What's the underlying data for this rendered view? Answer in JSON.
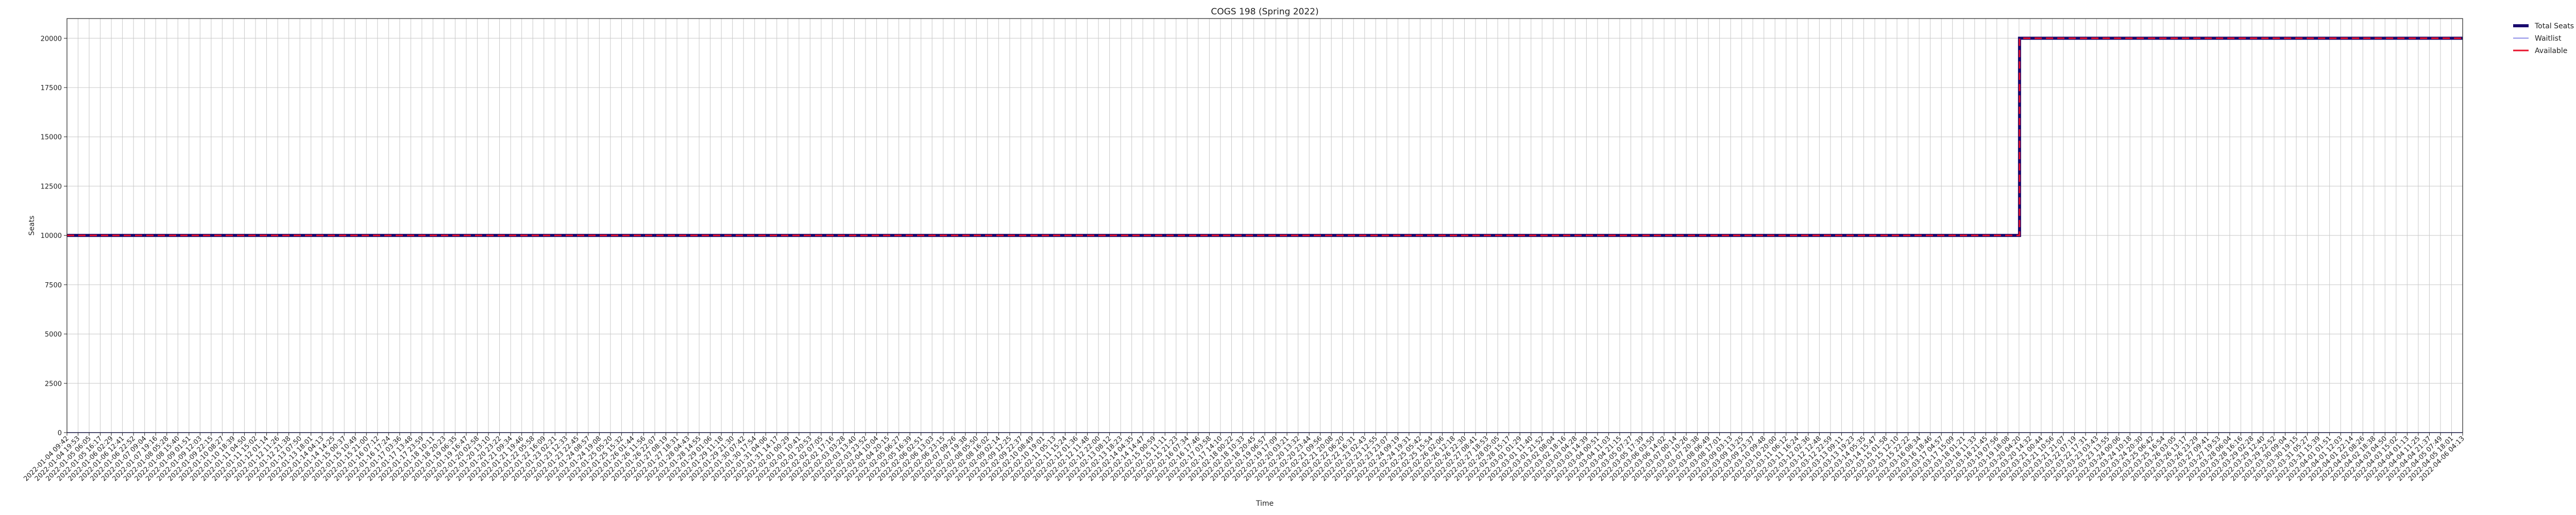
{
  "chart_data": {
    "type": "line",
    "title": "COGS 198 (Spring 2022)",
    "xlabel": "Time",
    "ylabel": "Seats",
    "ylim": [
      0,
      21000
    ],
    "yticks": [
      0,
      2500,
      5000,
      7500,
      10000,
      12500,
      15000,
      17500,
      20000
    ],
    "ytick_labels": [
      "0",
      "2500",
      "5000",
      "7500",
      "10000",
      "12500",
      "15000",
      "17500",
      "20000"
    ],
    "grid": true,
    "legend_position": "outside-top-right",
    "x_start": "2022-01-04 09:42",
    "x_end": "2022-04-06 04:13",
    "x_count": 217,
    "step_time": "2022-03-20 04:50",
    "series": [
      {
        "name": "Total Seats",
        "color": "#1a0a6e",
        "style": "solid",
        "before": 10000,
        "after": 20000
      },
      {
        "name": "Waitlist",
        "color": "#8f8fe8",
        "style": "solid",
        "before": 0,
        "after": 0
      },
      {
        "name": "Available",
        "color": "#e8102a",
        "style": "dashed",
        "before": 10000,
        "after": 20000
      }
    ]
  }
}
